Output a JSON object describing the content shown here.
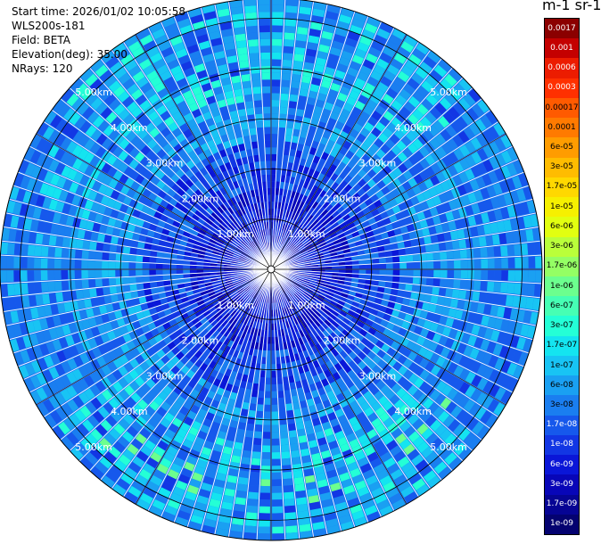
{
  "info": {
    "start_time": "Start time: 2026/01/02 10:05:58",
    "station": "WLS200s-181",
    "field": "Field: BETA",
    "elevation": "Elevation(deg): 35.00",
    "nrays": "NRays: 120"
  },
  "unit_title": "m-1 sr-1",
  "chart_data": {
    "type": "heatmap",
    "projection": "polar",
    "range_unit": "km",
    "max_range_km": 5.4,
    "range_rings_km": [
      1,
      2,
      3,
      4,
      5
    ],
    "ring_labels": [
      "1.00km",
      "2.00km",
      "3.00km",
      "4.00km",
      "5.00km"
    ],
    "spokes_deg": [
      0,
      30,
      60,
      90,
      120,
      150,
      180,
      210,
      240,
      270,
      300,
      330
    ],
    "colorbar": {
      "labels": [
        "0.0017",
        "0.001",
        "0.0006",
        "0.0003",
        "0.00017",
        "0.0001",
        "6e-05",
        "3e-05",
        "1.7e-05",
        "1e-05",
        "6e-06",
        "3e-06",
        "1.7e-06",
        "1e-06",
        "6e-07",
        "3e-07",
        "1.7e-07",
        "1e-07",
        "6e-08",
        "3e-08",
        "1.7e-08",
        "1e-08",
        "6e-09",
        "3e-09",
        "1.7e-09",
        "1e-09"
      ],
      "colors": [
        "#8b0000",
        "#c40000",
        "#ec1c00",
        "#ff3000",
        "#ff5a00",
        "#ff7a00",
        "#ff9c00",
        "#ffbc00",
        "#ffd800",
        "#f6f000",
        "#e2ff10",
        "#baff3a",
        "#94ff64",
        "#6cff8e",
        "#46ffb4",
        "#24ffd6",
        "#14e4f0",
        "#18c4f4",
        "#1aa0f2",
        "#1a7ef0",
        "#1658ec",
        "#1236e4",
        "#0a16d8",
        "#0806b8",
        "#060494",
        "#040270"
      ]
    }
  }
}
